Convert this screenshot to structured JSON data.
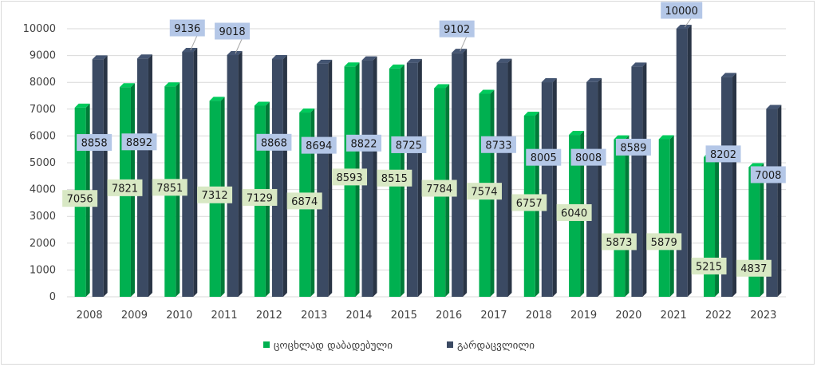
{
  "chart_data": {
    "type": "bar",
    "categories": [
      "2008",
      "2009",
      "2010",
      "2011",
      "2012",
      "2013",
      "2014",
      "2015",
      "2016",
      "2017",
      "2018",
      "2019",
      "2020",
      "2021",
      "2022",
      "2023"
    ],
    "series": [
      {
        "name": "ცოცხლად დაბადებული",
        "color": "#00b050",
        "values": [
          7056,
          7821,
          7851,
          7312,
          7129,
          6874,
          8593,
          8515,
          7784,
          7574,
          6757,
          6040,
          5873,
          5879,
          5215,
          4837
        ]
      },
      {
        "name": "გარდაცვლილი",
        "color": "#3b4a63",
        "values": [
          8858,
          8892,
          9136,
          9018,
          8868,
          8694,
          8822,
          8725,
          9102,
          8733,
          8005,
          8008,
          8589,
          10000,
          8202,
          7008
        ]
      }
    ],
    "yticks": [
      "0",
      "1000",
      "2000",
      "3000",
      "4000",
      "5000",
      "6000",
      "7000",
      "8000",
      "9000",
      "10000"
    ],
    "ylim": [
      0,
      10000
    ],
    "grid": true,
    "legend_position": "bottom",
    "label_colors": {
      "births_label_bg": "#d8e8c4",
      "deaths_label_bg": "#b4c7e7"
    }
  }
}
